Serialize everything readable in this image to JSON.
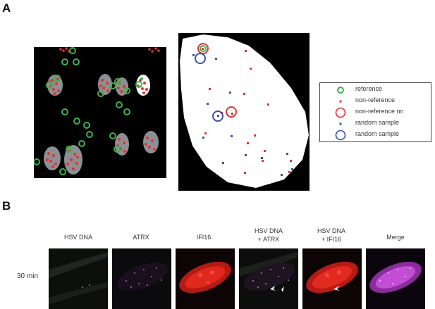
{
  "panels": {
    "a_label": "A",
    "b_label": "B"
  },
  "legend": {
    "items": [
      {
        "label": "reference",
        "symbol": "green-ring"
      },
      {
        "label": "non-reference",
        "symbol": "red-dot"
      },
      {
        "label": "non-reference nn",
        "symbol": "red-ring"
      },
      {
        "label": "random sample",
        "symbol": "blue-dot"
      },
      {
        "label": "random sample",
        "symbol": "blue-ring"
      }
    ]
  },
  "colors": {
    "reference": "#3cb34a",
    "non_reference": "#e33333",
    "random_sample": "#3b4fa8",
    "nucleus_gray": "#8c8f93"
  },
  "microscopy": {
    "columns": [
      {
        "line1": "HSV DNA",
        "line2": ""
      },
      {
        "line1": "ATRX",
        "line2": ""
      },
      {
        "line1": "IFI16",
        "line2": ""
      },
      {
        "line1": "HSV DNA",
        "line2": "+ ATRX"
      },
      {
        "line1": "HSV DNA",
        "line2": "+ IFI16"
      },
      {
        "line1": "Merge",
        "line2": ""
      }
    ],
    "row_label": "30 min"
  }
}
